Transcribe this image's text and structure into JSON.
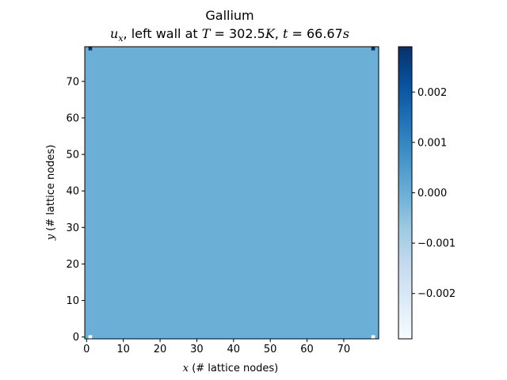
{
  "chart_data": {
    "type": "heatmap",
    "title": "Gallium",
    "subtitle": {
      "var": "u",
      "var_sub": "x",
      "text1": ", left wall at ",
      "T_sym": "T",
      "T_eq": " = 302.5",
      "T_unit": "K",
      "text2": ", ",
      "t_sym": "t",
      "t_eq": " = 66.67",
      "t_unit": "s"
    },
    "xlabel": {
      "italic": "x",
      "rest": " (# lattice nodes)"
    },
    "ylabel": {
      "italic": "y",
      "rest": " (# lattice nodes)"
    },
    "xlim": [
      -0.5,
      79.5
    ],
    "ylim": [
      -0.5,
      79.5
    ],
    "xticks": [
      "0",
      "10",
      "20",
      "30",
      "40",
      "50",
      "60",
      "70"
    ],
    "yticks": [
      "0",
      "10",
      "20",
      "30",
      "40",
      "50",
      "60",
      "70"
    ],
    "xtick_values": [
      0,
      10,
      20,
      30,
      40,
      50,
      60,
      70
    ],
    "ytick_values": [
      0,
      10,
      20,
      30,
      40,
      50,
      60,
      70
    ],
    "grid_size": [
      80,
      80
    ],
    "background_value": 0.0,
    "special_cells": [
      {
        "x": 1,
        "y": 79,
        "value": 0.0029
      },
      {
        "x": 78,
        "y": 79,
        "value": 0.0029
      },
      {
        "x": 1,
        "y": 0,
        "value": -0.0029
      },
      {
        "x": 78,
        "y": 0,
        "value": -0.0029
      }
    ],
    "colormap": "Blues",
    "colorbar": {
      "vmin": -0.0029,
      "vmax": 0.0029,
      "tick_values": [
        -0.002,
        -0.001,
        0.0,
        0.001,
        0.002
      ],
      "tick_labels": [
        "−0.002",
        "−0.001",
        "0.000",
        "0.001",
        "0.002"
      ],
      "gradient_colors": [
        "#f7fbff",
        "#deebf7",
        "#c6dbef",
        "#9ecae1",
        "#6baed6",
        "#4292c6",
        "#2171b5",
        "#08519c",
        "#08306b"
      ]
    }
  }
}
